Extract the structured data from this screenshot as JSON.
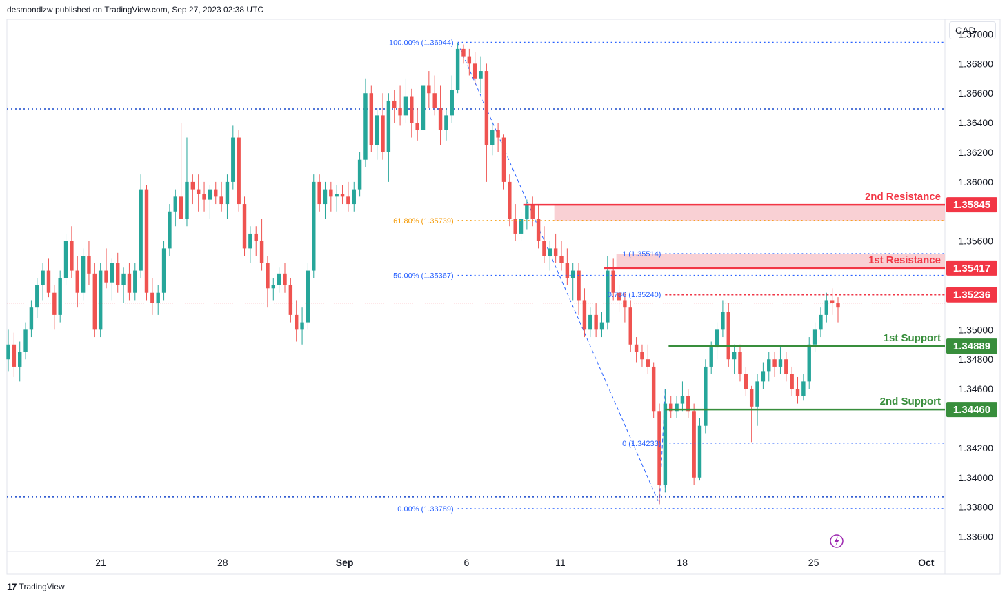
{
  "header": {
    "published": "desmondlzw published on TradingView.com, Sep 27, 2023 02:38 UTC"
  },
  "footer": {
    "brand": "TradingView",
    "logo": "17"
  },
  "axis": {
    "currency": "CAD"
  },
  "colors": {
    "up": "#26a69a",
    "down": "#ef5350",
    "resistance": "#f23645",
    "support": "#388e3c",
    "fib": "#2962ff",
    "fib618": "#f59d0c",
    "grid": "#1848cc"
  },
  "chart_data": {
    "type": "candlestick",
    "instrument_currency": "CAD",
    "ylim": [
      1.335,
      1.371
    ],
    "y_ticks": [
      "1.37000",
      "1.36800",
      "1.36600",
      "1.36400",
      "1.36200",
      "1.36000",
      "1.35600",
      "1.35000",
      "1.34800",
      "1.34600",
      "1.34200",
      "1.34000",
      "1.33800",
      "1.33600"
    ],
    "x_ticks": [
      {
        "label": "21",
        "x": 0.1
      },
      {
        "label": "28",
        "x": 0.23
      },
      {
        "label": "Sep",
        "x": 0.36
      },
      {
        "label": "6",
        "x": 0.49
      },
      {
        "label": "11",
        "x": 0.59
      },
      {
        "label": "18",
        "x": 0.72
      },
      {
        "label": "25",
        "x": 0.86
      },
      {
        "label": "Oct",
        "x": 0.98
      }
    ],
    "candles": [
      [
        1.348,
        1.35,
        1.3472,
        1.349
      ],
      [
        1.349,
        1.3498,
        1.3468,
        1.3475
      ],
      [
        1.3475,
        1.3492,
        1.3465,
        1.3485
      ],
      [
        1.3485,
        1.3505,
        1.348,
        1.35
      ],
      [
        1.35,
        1.352,
        1.3495,
        1.3515
      ],
      [
        1.3515,
        1.3535,
        1.3508,
        1.353
      ],
      [
        1.353,
        1.3545,
        1.352,
        1.354
      ],
      [
        1.354,
        1.3548,
        1.3522,
        1.3525
      ],
      [
        1.3525,
        1.353,
        1.35,
        1.351
      ],
      [
        1.351,
        1.354,
        1.3505,
        1.3535
      ],
      [
        1.3535,
        1.3565,
        1.353,
        1.356
      ],
      [
        1.356,
        1.357,
        1.3535,
        1.354
      ],
      [
        1.354,
        1.355,
        1.3515,
        1.3525
      ],
      [
        1.3525,
        1.3555,
        1.352,
        1.355
      ],
      [
        1.355,
        1.356,
        1.353,
        1.3538
      ],
      [
        1.3538,
        1.3545,
        1.3495,
        1.35
      ],
      [
        1.35,
        1.3545,
        1.3495,
        1.354
      ],
      [
        1.354,
        1.3555,
        1.3528,
        1.3532
      ],
      [
        1.3532,
        1.3548,
        1.352,
        1.3545
      ],
      [
        1.3545,
        1.3552,
        1.3525,
        1.353
      ],
      [
        1.353,
        1.3542,
        1.3518,
        1.3538
      ],
      [
        1.3538,
        1.3545,
        1.352,
        1.3525
      ],
      [
        1.3525,
        1.3545,
        1.352,
        1.354
      ],
      [
        1.354,
        1.3605,
        1.3535,
        1.3595
      ],
      [
        1.3595,
        1.3598,
        1.352,
        1.3525
      ],
      [
        1.3525,
        1.3535,
        1.351,
        1.3518
      ],
      [
        1.3518,
        1.353,
        1.351,
        1.3525
      ],
      [
        1.3525,
        1.356,
        1.352,
        1.3555
      ],
      [
        1.3555,
        1.3585,
        1.355,
        1.358
      ],
      [
        1.358,
        1.3595,
        1.357,
        1.359
      ],
      [
        1.359,
        1.364,
        1.3575,
        1.3575
      ],
      [
        1.3575,
        1.363,
        1.357,
        1.36
      ],
      [
        1.36,
        1.3605,
        1.3585,
        1.3595
      ],
      [
        1.3595,
        1.3605,
        1.358,
        1.3592
      ],
      [
        1.3592,
        1.36,
        1.358,
        1.3588
      ],
      [
        1.3588,
        1.3598,
        1.3575,
        1.3595
      ],
      [
        1.3595,
        1.36,
        1.3585,
        1.359
      ],
      [
        1.359,
        1.36,
        1.358,
        1.3585
      ],
      [
        1.3585,
        1.3605,
        1.3575,
        1.36
      ],
      [
        1.36,
        1.3638,
        1.3595,
        1.363
      ],
      [
        1.363,
        1.3635,
        1.358,
        1.3585
      ],
      [
        1.3585,
        1.359,
        1.355,
        1.3555
      ],
      [
        1.3555,
        1.357,
        1.3545,
        1.3565
      ],
      [
        1.3565,
        1.357,
        1.355,
        1.356
      ],
      [
        1.356,
        1.3575,
        1.354,
        1.3545
      ],
      [
        1.3545,
        1.355,
        1.3515,
        1.3528
      ],
      [
        1.3528,
        1.3535,
        1.352,
        1.353
      ],
      [
        1.353,
        1.3542,
        1.3525,
        1.3538
      ],
      [
        1.3538,
        1.3545,
        1.3525,
        1.353
      ],
      [
        1.353,
        1.3535,
        1.3505,
        1.351
      ],
      [
        1.351,
        1.352,
        1.3492,
        1.35
      ],
      [
        1.35,
        1.3515,
        1.349,
        1.3505
      ],
      [
        1.3505,
        1.3545,
        1.35,
        1.354
      ],
      [
        1.354,
        1.3605,
        1.3535,
        1.36
      ],
      [
        1.36,
        1.3605,
        1.358,
        1.3585
      ],
      [
        1.3585,
        1.36,
        1.3575,
        1.3595
      ],
      [
        1.3595,
        1.36,
        1.358,
        1.359
      ],
      [
        1.359,
        1.3598,
        1.358,
        1.3592
      ],
      [
        1.3592,
        1.3598,
        1.3585,
        1.359
      ],
      [
        1.359,
        1.36,
        1.358,
        1.3585
      ],
      [
        1.3585,
        1.36,
        1.358,
        1.3595
      ],
      [
        1.3595,
        1.362,
        1.359,
        1.3615
      ],
      [
        1.3615,
        1.367,
        1.361,
        1.366
      ],
      [
        1.366,
        1.3665,
        1.362,
        1.3625
      ],
      [
        1.3625,
        1.365,
        1.3615,
        1.3645
      ],
      [
        1.3645,
        1.366,
        1.3615,
        1.362
      ],
      [
        1.362,
        1.366,
        1.36,
        1.3655
      ],
      [
        1.3655,
        1.3662,
        1.364,
        1.365
      ],
      [
        1.365,
        1.3665,
        1.3638,
        1.3645
      ],
      [
        1.3645,
        1.367,
        1.364,
        1.3658
      ],
      [
        1.3658,
        1.3663,
        1.363,
        1.364
      ],
      [
        1.364,
        1.365,
        1.3628,
        1.3635
      ],
      [
        1.3635,
        1.367,
        1.363,
        1.3665
      ],
      [
        1.3665,
        1.3675,
        1.365,
        1.366
      ],
      [
        1.366,
        1.3672,
        1.3645,
        1.365
      ],
      [
        1.365,
        1.3665,
        1.3625,
        1.3635
      ],
      [
        1.3635,
        1.365,
        1.3628,
        1.3645
      ],
      [
        1.3645,
        1.3672,
        1.364,
        1.3662
      ],
      [
        1.3662,
        1.3694,
        1.366,
        1.369
      ],
      [
        1.369,
        1.3693,
        1.368,
        1.3685
      ],
      [
        1.3685,
        1.369,
        1.3672,
        1.368
      ],
      [
        1.368,
        1.3688,
        1.3665,
        1.367
      ],
      [
        1.367,
        1.3685,
        1.366,
        1.3675
      ],
      [
        1.3675,
        1.368,
        1.36,
        1.3625
      ],
      [
        1.3625,
        1.364,
        1.3618,
        1.3635
      ],
      [
        1.3635,
        1.364,
        1.362,
        1.363
      ],
      [
        1.363,
        1.3632,
        1.3595,
        1.36
      ],
      [
        1.36,
        1.3605,
        1.357,
        1.3575
      ],
      [
        1.3575,
        1.3585,
        1.356,
        1.3565
      ],
      [
        1.3565,
        1.358,
        1.356,
        1.3575
      ],
      [
        1.3575,
        1.3588,
        1.3568,
        1.3585
      ],
      [
        1.3585,
        1.359,
        1.357,
        1.3575
      ],
      [
        1.3575,
        1.3585,
        1.3555,
        1.356
      ],
      [
        1.356,
        1.357,
        1.3545,
        1.355
      ],
      [
        1.355,
        1.356,
        1.354,
        1.3555
      ],
      [
        1.3555,
        1.3565,
        1.3545,
        1.355
      ],
      [
        1.355,
        1.356,
        1.354,
        1.3545
      ],
      [
        1.3545,
        1.3555,
        1.353,
        1.3535
      ],
      [
        1.3535,
        1.3545,
        1.352,
        1.354
      ],
      [
        1.354,
        1.3545,
        1.351,
        1.352
      ],
      [
        1.352,
        1.3528,
        1.3495,
        1.35
      ],
      [
        1.35,
        1.3515,
        1.3495,
        1.351
      ],
      [
        1.351,
        1.3518,
        1.3495,
        1.35
      ],
      [
        1.35,
        1.3512,
        1.3495,
        1.3505
      ],
      [
        1.3505,
        1.355,
        1.35,
        1.354
      ],
      [
        1.354,
        1.3548,
        1.352,
        1.3525
      ],
      [
        1.3525,
        1.353,
        1.3512,
        1.352
      ],
      [
        1.352,
        1.3525,
        1.3505,
        1.3515
      ],
      [
        1.3515,
        1.352,
        1.3485,
        1.349
      ],
      [
        1.349,
        1.3495,
        1.3478,
        1.3485
      ],
      [
        1.3485,
        1.349,
        1.3475,
        1.348
      ],
      [
        1.348,
        1.349,
        1.347,
        1.3475
      ],
      [
        1.3475,
        1.3478,
        1.344,
        1.3445
      ],
      [
        1.3445,
        1.345,
        1.3382,
        1.3395
      ],
      [
        1.3395,
        1.346,
        1.339,
        1.345
      ],
      [
        1.345,
        1.3455,
        1.344,
        1.3445
      ],
      [
        1.3445,
        1.3455,
        1.344,
        1.345
      ],
      [
        1.345,
        1.3465,
        1.3445,
        1.3455
      ],
      [
        1.3455,
        1.346,
        1.344,
        1.3445
      ],
      [
        1.3445,
        1.345,
        1.3395,
        1.34
      ],
      [
        1.34,
        1.344,
        1.3398,
        1.3435
      ],
      [
        1.3435,
        1.348,
        1.343,
        1.3475
      ],
      [
        1.3475,
        1.3492,
        1.347,
        1.3488
      ],
      [
        1.3488,
        1.3505,
        1.348,
        1.35
      ],
      [
        1.35,
        1.352,
        1.3495,
        1.3512
      ],
      [
        1.3512,
        1.3518,
        1.3475,
        1.348
      ],
      [
        1.348,
        1.349,
        1.347,
        1.3485
      ],
      [
        1.3485,
        1.349,
        1.3465,
        1.347
      ],
      [
        1.347,
        1.3475,
        1.3455,
        1.346
      ],
      [
        1.346,
        1.3462,
        1.3424,
        1.3448
      ],
      [
        1.3448,
        1.347,
        1.3435,
        1.3465
      ],
      [
        1.3465,
        1.3478,
        1.346,
        1.3472
      ],
      [
        1.3472,
        1.3485,
        1.3465,
        1.348
      ],
      [
        1.348,
        1.3485,
        1.3468,
        1.3475
      ],
      [
        1.3475,
        1.3488,
        1.347,
        1.348
      ],
      [
        1.348,
        1.3485,
        1.3465,
        1.347
      ],
      [
        1.347,
        1.3475,
        1.3455,
        1.346
      ],
      [
        1.346,
        1.3468,
        1.345,
        1.3455
      ],
      [
        1.3455,
        1.347,
        1.3452,
        1.3465
      ],
      [
        1.3465,
        1.3495,
        1.346,
        1.349
      ],
      [
        1.349,
        1.3505,
        1.3485,
        1.35
      ],
      [
        1.35,
        1.3515,
        1.3495,
        1.351
      ],
      [
        1.351,
        1.3525,
        1.3505,
        1.352
      ],
      [
        1.352,
        1.3528,
        1.351,
        1.3518
      ],
      [
        1.3518,
        1.3522,
        1.3505,
        1.3515
      ]
    ],
    "levels": [
      {
        "name": "2nd Resistance",
        "price": 1.35845,
        "label": "1.35845",
        "kind": "resistance"
      },
      {
        "name": "1st Resistance",
        "price": 1.35417,
        "label": "1.35417",
        "kind": "resistance"
      },
      {
        "name": "",
        "price": 1.35236,
        "label": "1.35236",
        "kind": "current"
      },
      {
        "name": "1st Support",
        "price": 1.34889,
        "label": "1.34889",
        "kind": "support"
      },
      {
        "name": "2nd Support",
        "price": 1.3446,
        "label": "1.34460",
        "kind": "support"
      }
    ],
    "fib_labels": [
      {
        "text": "100.00% (1.36944)",
        "price": 1.36944,
        "kind": "blue"
      },
      {
        "text": "61.80% (1.35739)",
        "price": 1.35739,
        "kind": "orange"
      },
      {
        "text": "50.00% (1.35367)",
        "price": 1.35367,
        "kind": "blue"
      },
      {
        "text": "0.00% (1.33789)",
        "price": 1.33789,
        "kind": "blue"
      },
      {
        "text": "1 (1.35514)",
        "price": 1.35514,
        "kind": "blue"
      },
      {
        "text": "0.786 (1.35240)",
        "price": 1.3524,
        "kind": "blue"
      },
      {
        "text": "0 (1.34233)",
        "price": 1.34233,
        "kind": "blue"
      }
    ],
    "horizontal_dotted": [
      1.36494,
      1.33869
    ],
    "zones": [
      {
        "from": 1.35739,
        "to": 1.35845,
        "kind": "resistance"
      },
      {
        "from": 1.35417,
        "to": 1.35514,
        "kind": "resistance"
      }
    ]
  }
}
